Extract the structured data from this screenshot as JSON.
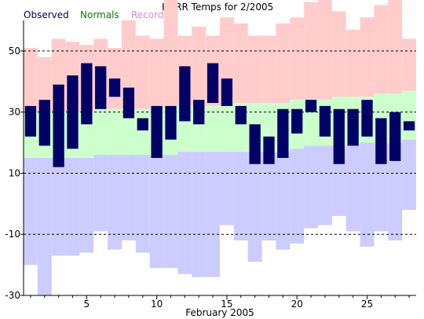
{
  "chart_data": {
    "type": "bar",
    "title": "KGRR Temps for 2/2005",
    "xlabel": "February 2005",
    "ylabel": "",
    "xlim": [
      0.5,
      28.5
    ],
    "ylim": [
      -30,
      60
    ],
    "yticks": [
      -30,
      -10,
      10,
      30,
      50
    ],
    "xticks": [
      5,
      10,
      15,
      20,
      25
    ],
    "dashed_gridlines": [
      -10,
      10,
      30,
      50
    ],
    "legend_position": "top-left",
    "colors": {
      "observed": "#000066",
      "normals_band": "#ccffcc",
      "record_high_band": "#ffcccc",
      "record_low_band": "#ccccff",
      "normals_label": "#008000",
      "records_label": "#dd88dd"
    },
    "legend": {
      "observed": "Observed",
      "normals": "Normals",
      "records": "Records"
    },
    "days": [
      1,
      2,
      3,
      4,
      5,
      6,
      7,
      8,
      9,
      10,
      11,
      12,
      13,
      14,
      15,
      16,
      17,
      18,
      19,
      20,
      21,
      22,
      23,
      24,
      25,
      26,
      27,
      28
    ],
    "series": [
      {
        "name": "Observed",
        "low": [
          22,
          19,
          12,
          18,
          26,
          31,
          35,
          28,
          24,
          15,
          21,
          27,
          26,
          33,
          32,
          26,
          13,
          13,
          15,
          23,
          30,
          22,
          13,
          19,
          22,
          13,
          14,
          24
        ],
        "high": [
          32,
          34,
          39,
          42,
          46,
          45,
          41,
          38,
          28,
          32,
          32,
          45,
          34,
          46,
          41,
          32,
          26,
          22,
          31,
          31,
          34,
          32,
          31,
          31,
          34,
          28,
          30,
          27
        ]
      },
      {
        "name": "Normals",
        "low": [
          15,
          15,
          15,
          15,
          15,
          16,
          16,
          16,
          16,
          16,
          16,
          17,
          17,
          17,
          17,
          17,
          17,
          17,
          17,
          18,
          19,
          19,
          19,
          19,
          20,
          20,
          20,
          21
        ],
        "high": [
          30,
          30,
          30,
          30,
          30,
          31,
          31,
          31,
          31,
          31,
          32,
          32,
          32,
          32,
          32,
          33,
          33,
          33,
          33,
          34,
          34,
          34,
          35,
          35,
          35,
          36,
          36,
          37
        ]
      },
      {
        "name": "Records",
        "low": [
          -20,
          -30,
          -17,
          -17,
          -16,
          -9,
          -15,
          -12,
          -16,
          -21,
          -21,
          -23,
          -24,
          -24,
          -7,
          -12,
          -19,
          -12,
          -15,
          -13,
          -8,
          -7,
          -4,
          -9,
          -14,
          -9,
          -12,
          -2
        ],
        "high": [
          51,
          48,
          54,
          53,
          52,
          54,
          51,
          60,
          55,
          54,
          69,
          55,
          58,
          55,
          61,
          59,
          55,
          55,
          59,
          61,
          66,
          67,
          63,
          57,
          61,
          65,
          67,
          54
        ]
      }
    ]
  }
}
